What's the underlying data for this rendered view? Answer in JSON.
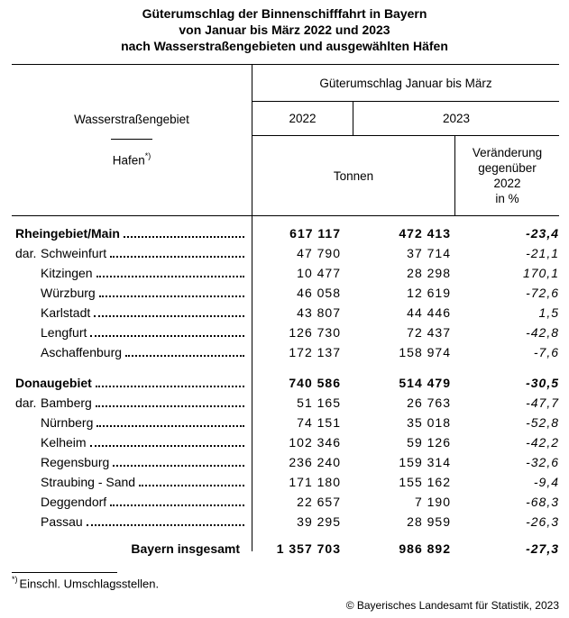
{
  "title": {
    "line1": "Güterumschlag der Binnenschifffahrt in Bayern",
    "line2": "von Januar bis März 2022 und 2023",
    "line3": "nach Wasserstraßengebieten und ausgewählten Häfen"
  },
  "table": {
    "header": {
      "col1_top": "Wasserstraßengebiet",
      "col1_bottom": "Hafen",
      "footnote_marker": "*)",
      "span_title": "Güterumschlag Januar bis März",
      "year1": "2022",
      "year2": "2023",
      "unit": "Tonnen",
      "change_lines": [
        "Veränderung",
        "gegenüber",
        "2022",
        "in %"
      ]
    },
    "sections": [
      {
        "darunter_label": "dar.",
        "total": {
          "name": "Rheingebiet/Main",
          "v2022": "617 117",
          "v2023": "472 413",
          "change": "-23,4"
        },
        "rows": [
          {
            "name": "Schweinfurt",
            "v2022": "47 790",
            "v2023": "37 714",
            "change": "-21,1"
          },
          {
            "name": "Kitzingen",
            "v2022": "10 477",
            "v2023": "28 298",
            "change": "170,1"
          },
          {
            "name": "Würzburg",
            "v2022": "46 058",
            "v2023": "12 619",
            "change": "-72,6"
          },
          {
            "name": "Karlstadt",
            "v2022": "43 807",
            "v2023": "44 446",
            "change": "1,5"
          },
          {
            "name": "Lengfurt",
            "v2022": "126 730",
            "v2023": "72 437",
            "change": "-42,8"
          },
          {
            "name": "Aschaffenburg",
            "v2022": "172 137",
            "v2023": "158 974",
            "change": "-7,6"
          }
        ]
      },
      {
        "darunter_label": "dar.",
        "total": {
          "name": "Donaugebiet",
          "v2022": "740 586",
          "v2023": "514 479",
          "change": "-30,5"
        },
        "rows": [
          {
            "name": "Bamberg",
            "v2022": "51 165",
            "v2023": "26 763",
            "change": "-47,7"
          },
          {
            "name": "Nürnberg",
            "v2022": "74 151",
            "v2023": "35 018",
            "change": "-52,8"
          },
          {
            "name": "Kelheim",
            "v2022": "102 346",
            "v2023": "59 126",
            "change": "-42,2"
          },
          {
            "name": "Regensburg",
            "v2022": "236 240",
            "v2023": "159 314",
            "change": "-32,6"
          },
          {
            "name": "Straubing - Sand",
            "v2022": "171 180",
            "v2023": "155 162",
            "change": "-9,4"
          },
          {
            "name": "Deggendorf",
            "v2022": "22 657",
            "v2023": "7 190",
            "change": "-68,3"
          },
          {
            "name": "Passau",
            "v2022": "39 295",
            "v2023": "28 959",
            "change": "-26,3"
          }
        ]
      }
    ],
    "total_row": {
      "name": "Bayern insgesamt",
      "v2022": "1 357 703",
      "v2023": "986 892",
      "change": "-27,3"
    }
  },
  "footnote": {
    "marker": "*)",
    "text": "Einschl. Umschlagsstellen."
  },
  "copyright": "© Bayerisches Landesamt für Statistik, 2023"
}
